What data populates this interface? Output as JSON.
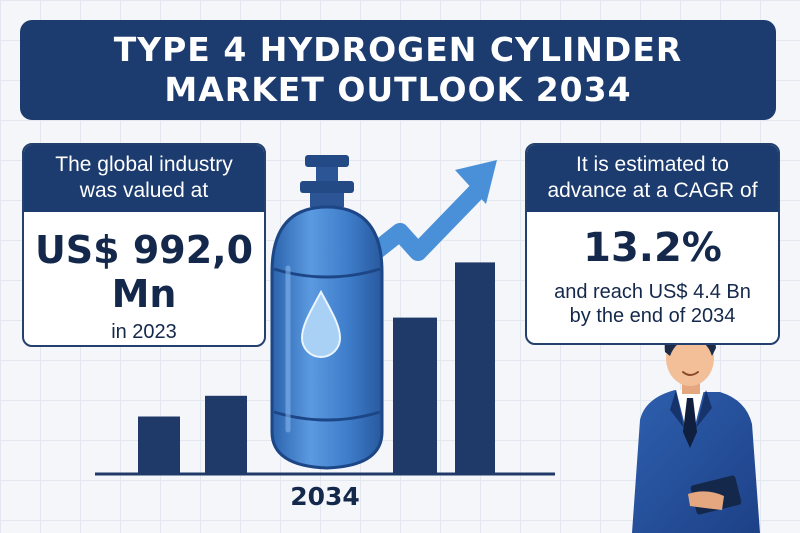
{
  "header": {
    "title_line1": "TYPE 4 HYDROGEN CYLINDER",
    "title_line2": "MARKET OUTLOOK 2034"
  },
  "left_card": {
    "heading_line1": "The global industry",
    "heading_line2": "was valued at",
    "value_line1": "US$ 992,0",
    "value_line2": "Mn",
    "year_text": "in 2023"
  },
  "right_card": {
    "heading_line1": "It is estimated to",
    "heading_line2": "advance at a CAGR of",
    "cagr_value": "13.2%",
    "detail_line1": "and reach US$ 4.4 Bn",
    "detail_line2": "by the end of 2034"
  },
  "chart": {
    "year_label": "2034",
    "bar_levels": [
      0.25,
      0.34,
      0.68,
      0.92
    ]
  },
  "colors": {
    "navy": "#1c3b6e",
    "cylinder_blue": "#3f7fcf",
    "arrow_blue": "#4a90d9",
    "bar_navy": "#1f3a68"
  },
  "icons": [
    "hydrogen-cylinder-icon",
    "water-drop-icon",
    "growth-arrow-icon",
    "businessman-illustration"
  ]
}
